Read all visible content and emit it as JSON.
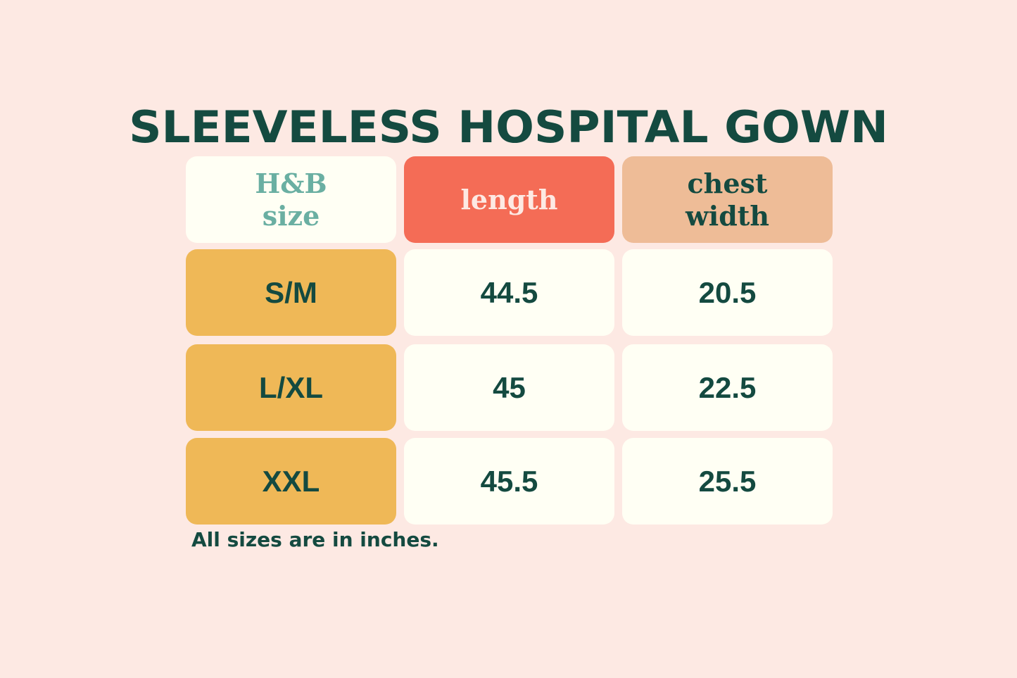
{
  "title": "SLEEVELESS HOSPITAL GOWN",
  "table": {
    "headers": [
      {
        "line1": "H&B",
        "line2": "size"
      },
      {
        "line1": "length",
        "line2": ""
      },
      {
        "line1": "chest",
        "line2": "width"
      }
    ],
    "rows": [
      {
        "size": "S/M",
        "length": "44.5",
        "chest_width": "20.5"
      },
      {
        "size": "L/XL",
        "length": "45",
        "chest_width": "22.5"
      },
      {
        "size": "XXL",
        "length": "45.5",
        "chest_width": "25.5"
      }
    ]
  },
  "footnote": "All sizes are in inches.",
  "colors": {
    "background": "#fde9e3",
    "text_dark_green": "#144a40",
    "header_size_text": "#6aafa2",
    "header_length_bg": "#f46c56",
    "header_chest_bg": "#eebc97",
    "size_cell_bg": "#efb857",
    "value_cell_bg": "#fffff4"
  }
}
